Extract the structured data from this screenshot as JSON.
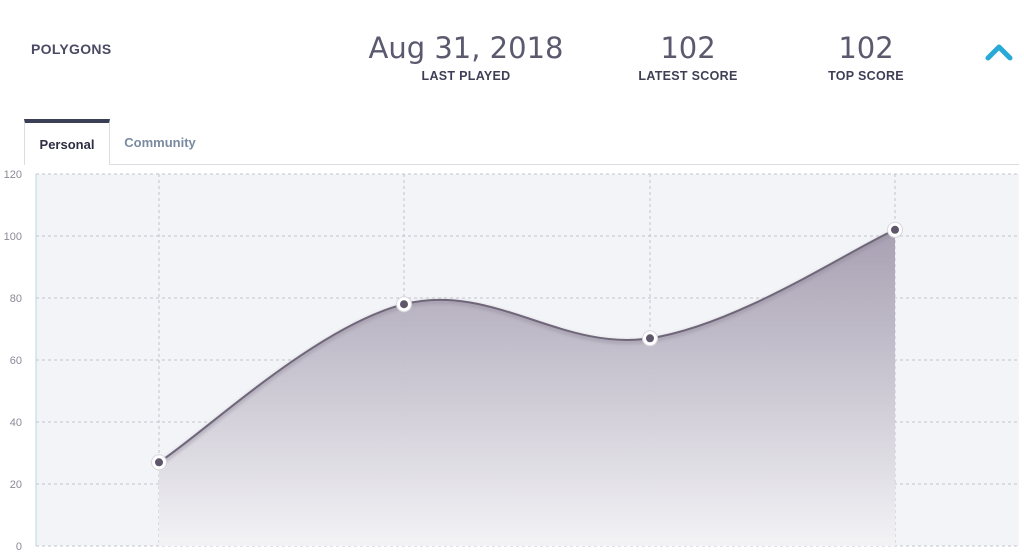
{
  "header": {
    "game_title": "POLYGONS",
    "stats": {
      "last_played": {
        "value": "Aug 31, 2018",
        "label": "LAST PLAYED"
      },
      "latest_score": {
        "value": "102",
        "label": "LATEST SCORE"
      },
      "top_score": {
        "value": "102",
        "label": "TOP SCORE"
      }
    },
    "collapse_icon": "chevron-up-icon",
    "accent_color": "#29a9d6"
  },
  "tabs": [
    {
      "label": "Personal",
      "active": true
    },
    {
      "label": "Community",
      "active": false
    }
  ],
  "chart_data": {
    "type": "area",
    "title": "",
    "xlabel": "",
    "ylabel": "",
    "x": [
      1,
      2,
      3,
      4
    ],
    "series": [
      {
        "values": [
          27,
          78,
          67,
          102
        ]
      }
    ],
    "ylim": [
      0,
      120
    ],
    "yticks": [
      0,
      20,
      40,
      60,
      80,
      100,
      120
    ],
    "grid": true,
    "colors": {
      "fill_top": "#a49caf",
      "fill_bottom": "#f3f3f6",
      "line": "#6f6779",
      "point": "#5f566b",
      "background": "#f3f4f7"
    }
  }
}
